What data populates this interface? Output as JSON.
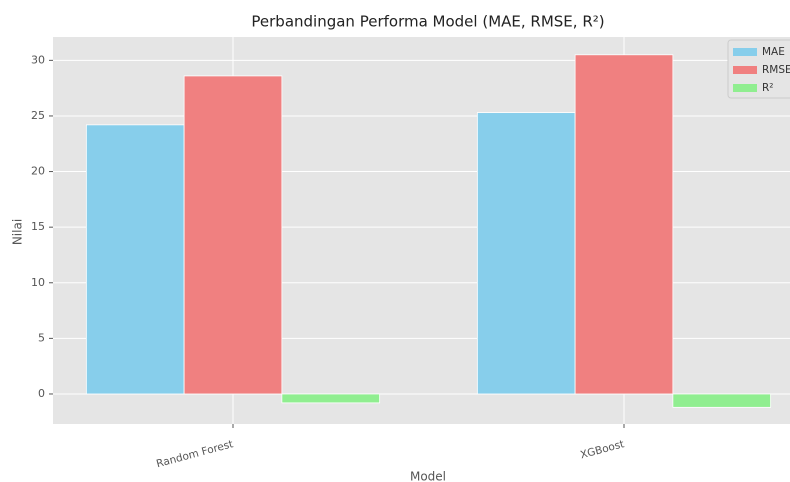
{
  "chart_data": {
    "type": "bar",
    "title": "Perbandingan Performa Model (MAE, RMSE, R²)",
    "xlabel": "Model",
    "ylabel": "Nilai",
    "categories": [
      "Random Forest",
      "XGBoost"
    ],
    "series": [
      {
        "name": "MAE",
        "color": "#87ceeb",
        "values": [
          24.2,
          25.3
        ]
      },
      {
        "name": "RMSE",
        "color": "#f08080",
        "values": [
          28.6,
          30.5
        ]
      },
      {
        "name": "R²",
        "color": "#90ee90",
        "values": [
          -0.8,
          -1.2
        ]
      }
    ],
    "ylim": [
      -2.7,
      32.1
    ],
    "yticks": [
      0,
      5,
      10,
      15,
      20,
      25,
      30
    ],
    "grid": true,
    "legend": "upper right"
  }
}
